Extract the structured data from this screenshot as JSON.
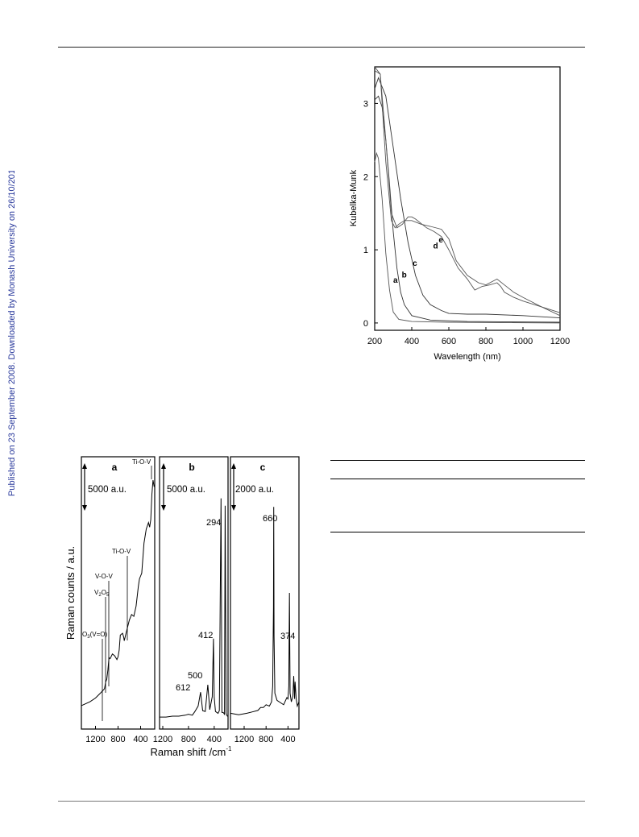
{
  "side_note": "Published on 23 September 2008. Downloaded by Monash University on 26/10/2014 11:20:43.",
  "uv_figure": {
    "ylabel": "Kubelka-Munk",
    "xlabel": "Wavelength (nm)",
    "x_ticks": [
      "200",
      "400",
      "600",
      "800",
      "1000",
      "1200"
    ],
    "y_ticks": [
      "0",
      "1",
      "2",
      "3"
    ],
    "curve_labels": [
      "a",
      "b",
      "c",
      "d",
      "e"
    ]
  },
  "raman_figure": {
    "ylabel": "Raman counts / a.u.",
    "xlabel": "Raman shift /cm",
    "xlabel_sup": "-1",
    "panels": [
      {
        "label": "a",
        "scale": "5000 a.u.",
        "x_ticks": [
          "1200",
          "800",
          "400"
        ],
        "annotations": [
          "Ti-O-V",
          "Ti-O-V",
          "V-O-V",
          "V",
          "2",
          "O",
          "5",
          "O",
          "3",
          "(V=O)"
        ]
      },
      {
        "label": "b",
        "scale": "5000 a.u.",
        "x_ticks": [
          "1200",
          "800",
          "400"
        ],
        "peaks": [
          "294",
          "412",
          "500",
          "612"
        ]
      },
      {
        "label": "c",
        "scale": "2000 a.u.",
        "x_ticks": [
          "1200",
          "800",
          "400"
        ],
        "peaks": [
          "660",
          "374"
        ]
      }
    ]
  },
  "chart_data": [
    {
      "type": "line",
      "xlabel": "Wavelength (nm)",
      "ylabel": "Kubelka-Munk",
      "xlim": [
        200,
        1200
      ],
      "ylim": [
        -0.1,
        3.5
      ],
      "series": [
        {
          "name": "a",
          "x": [
            200,
            210,
            220,
            240,
            260,
            280,
            300,
            330,
            400,
            600,
            1200
          ],
          "y": [
            2.2,
            2.32,
            2.25,
            1.7,
            0.95,
            0.45,
            0.15,
            0.05,
            0.02,
            0.01,
            0.0
          ]
        },
        {
          "name": "b",
          "x": [
            200,
            220,
            240,
            260,
            280,
            300,
            320,
            340,
            360,
            400,
            500,
            700,
            1200
          ],
          "y": [
            3.05,
            3.1,
            2.95,
            2.5,
            1.9,
            1.25,
            0.75,
            0.42,
            0.25,
            0.1,
            0.04,
            0.02,
            0.01
          ]
        },
        {
          "name": "c",
          "x": [
            200,
            220,
            260,
            300,
            340,
            380,
            420,
            460,
            500,
            560,
            600,
            700,
            800,
            1000,
            1200
          ],
          "y": [
            3.2,
            3.35,
            3.1,
            2.4,
            1.7,
            1.1,
            0.65,
            0.38,
            0.25,
            0.17,
            0.13,
            0.12,
            0.12,
            0.1,
            0.07
          ]
        },
        {
          "name": "d",
          "x": [
            200,
            230,
            260,
            290,
            320,
            350,
            380,
            400,
            420,
            480,
            520,
            560,
            600,
            650,
            700,
            740,
            780,
            820,
            860,
            880,
            900,
            950,
            1000,
            1100,
            1200
          ],
          "y": [
            3.45,
            3.4,
            2.5,
            1.5,
            1.3,
            1.35,
            1.45,
            1.45,
            1.42,
            1.3,
            1.25,
            1.18,
            1.0,
            0.75,
            0.6,
            0.45,
            0.5,
            0.52,
            0.55,
            0.5,
            0.42,
            0.35,
            0.3,
            0.22,
            0.14
          ]
        },
        {
          "name": "e",
          "x": [
            200,
            230,
            260,
            290,
            310,
            330,
            360,
            400,
            450,
            500,
            560,
            600,
            640,
            700,
            760,
            800,
            860,
            900,
            950,
            1000,
            1100,
            1200
          ],
          "y": [
            3.5,
            3.4,
            2.2,
            1.4,
            1.3,
            1.35,
            1.4,
            1.4,
            1.35,
            1.32,
            1.28,
            1.15,
            0.85,
            0.65,
            0.55,
            0.52,
            0.6,
            0.52,
            0.42,
            0.35,
            0.22,
            0.1
          ]
        }
      ]
    },
    {
      "type": "line",
      "title": "a",
      "xlabel": "Raman shift /cm-1",
      "ylabel": "Raman counts / a.u.",
      "xlim": [
        1450,
        150
      ],
      "series": [
        {
          "name": "a",
          "x": [
            1450,
            1300,
            1200,
            1100,
            1040,
            1020,
            1000,
            980,
            960,
            940,
            900,
            860,
            820,
            800,
            780,
            760,
            720,
            700,
            690,
            650,
            600,
            560,
            520,
            480,
            440,
            420,
            400,
            380,
            340,
            300,
            260,
            240,
            220,
            200,
            180,
            160,
            150
          ],
          "y": [
            0.5,
            0.9,
            1.3,
            1.9,
            2.3,
            3.0,
            3.3,
            4.3,
            5.6,
            5.5,
            6.0,
            5.8,
            5.4,
            5.7,
            6.4,
            8.0,
            8.2,
            7.8,
            7.4,
            8.4,
            9.6,
            10.2,
            10.0,
            11.1,
            13.2,
            14.0,
            14.3,
            14.6,
            17.8,
            19.3,
            20.0,
            19.5,
            20.3,
            23.0,
            24.5,
            23.8,
            24.0
          ]
        }
      ]
    },
    {
      "type": "line",
      "title": "b",
      "xlabel": "Raman shift /cm-1",
      "series": [
        {
          "name": "b",
          "x": [
            1250,
            1150,
            1050,
            950,
            850,
            800,
            740,
            700,
            650,
            612,
            580,
            540,
            500,
            470,
            430,
            412,
            400,
            380,
            340,
            320,
            294,
            280,
            260,
            240,
            230,
            215,
            205,
            195,
            185
          ],
          "y": [
            0.3,
            0.3,
            0.4,
            0.4,
            0.5,
            0.6,
            0.5,
            0.9,
            1.5,
            3.0,
            1.0,
            0.9,
            3.8,
            1.1,
            2.5,
            8.8,
            2.5,
            0.9,
            0.7,
            1.0,
            24.0,
            0.8,
            0.8,
            0.6,
            23.2,
            0.7,
            0.5,
            0.4,
            0.4
          ]
        }
      ]
    },
    {
      "type": "line",
      "title": "c",
      "xlabel": "Raman shift /cm-1",
      "series": [
        {
          "name": "c",
          "x": [
            1450,
            1300,
            1150,
            1050,
            950,
            900,
            850,
            800,
            740,
            700,
            680,
            665,
            660,
            655,
            640,
            600,
            520,
            480,
            420,
            400,
            385,
            374,
            362,
            340,
            310,
            295,
            280,
            270,
            250,
            230,
            210,
            200
          ],
          "y": [
            0.6,
            0.5,
            0.6,
            0.7,
            0.8,
            1.0,
            1.0,
            1.2,
            1.1,
            1.4,
            2.5,
            8.0,
            15.0,
            6.0,
            2.0,
            1.5,
            1.3,
            1.2,
            1.7,
            1.6,
            2.5,
            9.0,
            2.0,
            1.4,
            1.8,
            3.2,
            1.6,
            2.8,
            1.6,
            1.1,
            1.3,
            1.4
          ]
        }
      ]
    }
  ]
}
